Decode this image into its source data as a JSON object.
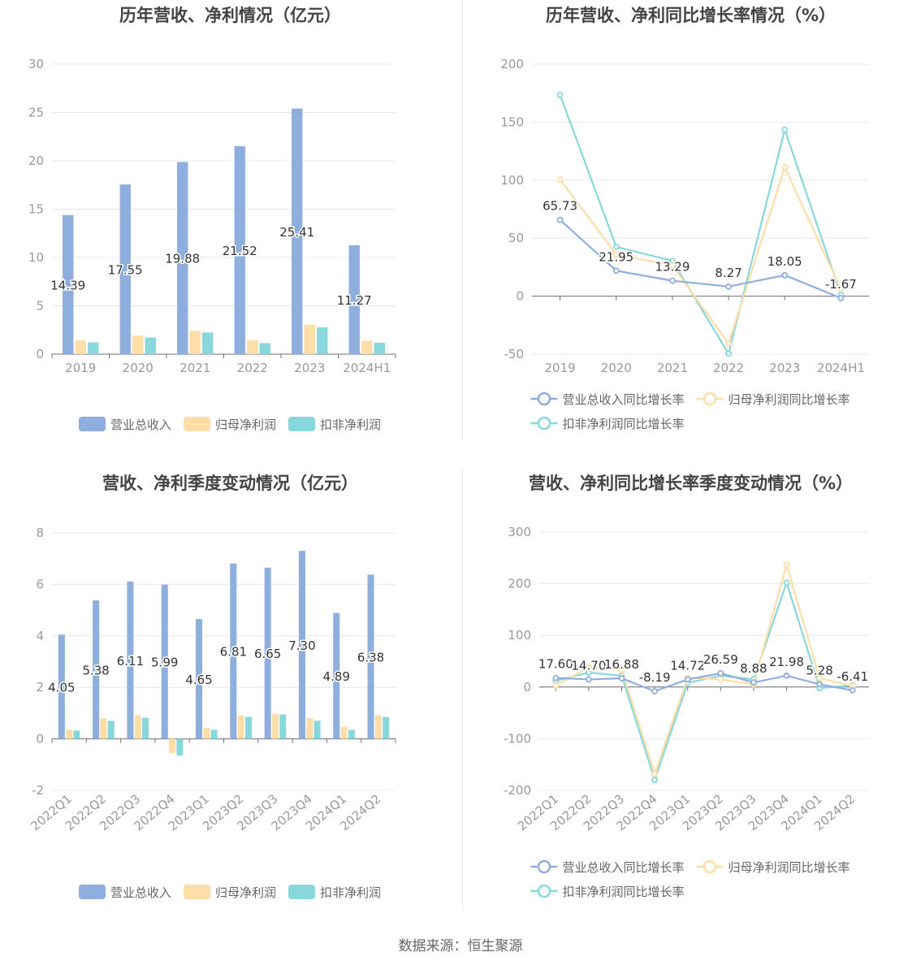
{
  "source_text": "数据来源：恒生聚源",
  "colors": {
    "revenue": "#8eaedd",
    "net_profit": "#ffdda6",
    "deducted_profit": "#88d7dc",
    "axis_text": "#999999",
    "grid": "#e5e8f0",
    "title": "#444444"
  },
  "chart_data": [
    {
      "id": "annual-bars",
      "type": "bar",
      "title": "历年营收、净利情况（亿元）",
      "categories": [
        "2019",
        "2020",
        "2021",
        "2022",
        "2023",
        "2024H1"
      ],
      "ylim": [
        0,
        30
      ],
      "yticks": [
        0,
        5,
        10,
        15,
        20,
        25,
        30
      ],
      "series": [
        {
          "name": "营业总收入",
          "values": [
            14.39,
            17.55,
            19.88,
            21.52,
            25.41,
            11.27
          ],
          "labels": [
            "14.39",
            "17.55",
            "19.88",
            "21.52",
            "25.41",
            "11.27"
          ]
        },
        {
          "name": "归母净利润",
          "values": [
            1.42,
            1.92,
            2.42,
            1.45,
            3.05,
            1.36
          ]
        },
        {
          "name": "扣非净利润",
          "values": [
            1.22,
            1.72,
            2.24,
            1.15,
            2.78,
            1.18
          ]
        }
      ],
      "legend": "bottom"
    },
    {
      "id": "annual-growth",
      "type": "line",
      "title": "历年营收、净利同比增长率情况（%）",
      "categories": [
        "2019",
        "2020",
        "2021",
        "2022",
        "2023",
        "2024H1"
      ],
      "ylim": [
        -50,
        200
      ],
      "yticks": [
        -50,
        0,
        50,
        100,
        150,
        200
      ],
      "series": [
        {
          "name": "营业总收入同比增长率",
          "values": [
            65.73,
            21.95,
            13.29,
            8.27,
            18.05,
            -1.67
          ],
          "labels": [
            "65.73",
            "21.95",
            "13.29",
            "8.27",
            "18.05",
            "-1.67"
          ]
        },
        {
          "name": "归母净利润同比增长率",
          "values": [
            100.5,
            36,
            26.5,
            -41,
            111,
            6
          ]
        },
        {
          "name": "扣非净利润同比增长率",
          "values": [
            173.5,
            42.5,
            30.5,
            -49.5,
            143.5,
            1
          ]
        }
      ],
      "legend": "bottom"
    },
    {
      "id": "quarterly-bars",
      "type": "bar",
      "title": "营收、净利季度变动情况（亿元）",
      "categories": [
        "2022Q1",
        "2022Q2",
        "2022Q3",
        "2022Q4",
        "2023Q1",
        "2023Q2",
        "2023Q3",
        "2023Q4",
        "2024Q1",
        "2024Q2"
      ],
      "ylim": [
        -2,
        8
      ],
      "yticks": [
        -2,
        0,
        2,
        4,
        6,
        8
      ],
      "series": [
        {
          "name": "营业总收入",
          "values": [
            4.05,
            5.38,
            6.11,
            5.99,
            4.65,
            6.81,
            6.65,
            7.3,
            4.89,
            6.38
          ],
          "labels": [
            "4.05",
            "5.38",
            "6.11",
            "5.99",
            "4.65",
            "6.81",
            "6.65",
            "7.30",
            "4.89",
            "6.38"
          ]
        },
        {
          "name": "归母净利润",
          "values": [
            0.35,
            0.8,
            0.92,
            -0.55,
            0.42,
            0.9,
            0.98,
            0.8,
            0.47,
            0.92
          ]
        },
        {
          "name": "扣非净利润",
          "values": [
            0.32,
            0.7,
            0.82,
            -0.65,
            0.35,
            0.85,
            0.95,
            0.7,
            0.35,
            0.85
          ]
        }
      ],
      "legend": "bottom"
    },
    {
      "id": "quarterly-growth",
      "type": "line",
      "title": "营收、净利同比增长率季度变动情况（%）",
      "categories": [
        "2022Q1",
        "2022Q2",
        "2022Q3",
        "2022Q4",
        "2023Q1",
        "2023Q2",
        "2023Q3",
        "2023Q4",
        "2024Q1",
        "2024Q2"
      ],
      "ylim": [
        -200,
        300
      ],
      "yticks": [
        -200,
        -100,
        0,
        100,
        200,
        300
      ],
      "series": [
        {
          "name": "营业总收入同比增长率",
          "values": [
            17.6,
            14.7,
            16.88,
            -8.19,
            14.72,
            26.59,
            8.88,
            21.98,
            5.28,
            -6.41
          ],
          "labels": [
            "17.60",
            "14.70",
            "16.88",
            "-8.19",
            "14.72",
            "26.59",
            "8.88",
            "21.98",
            "5.28",
            "-6.41"
          ]
        },
        {
          "name": "归母净利润同比增长率",
          "values": [
            3,
            38,
            33,
            -168,
            18,
            15,
            5,
            237,
            17,
            2
          ]
        },
        {
          "name": "扣非净利润同比增长率",
          "values": [
            12,
            28,
            22,
            -180,
            8,
            22,
            15,
            202,
            -2,
            3
          ]
        }
      ],
      "legend": "bottom"
    }
  ]
}
